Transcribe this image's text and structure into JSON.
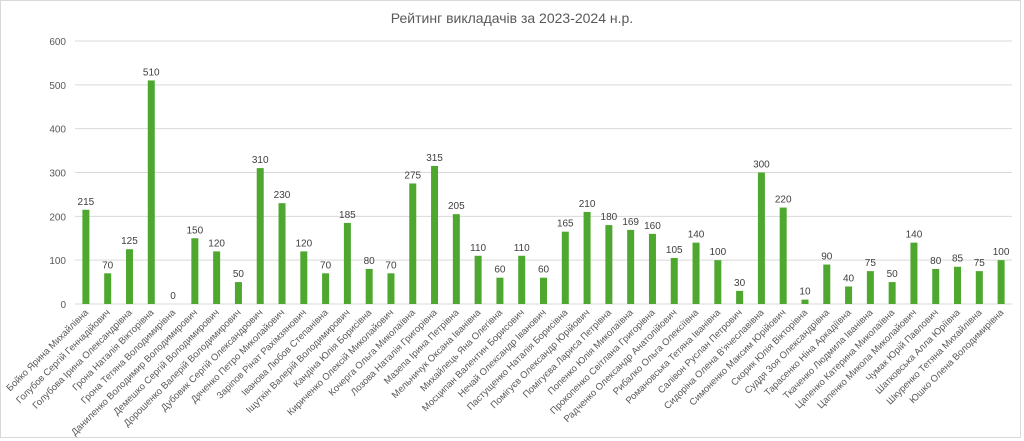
{
  "chart_data": {
    "type": "bar",
    "title": "Рейтинг викладачів за 2023-2024 н.р.",
    "xlabel": "",
    "ylabel": "",
    "ylim": [
      0,
      600
    ],
    "yticks": [
      0,
      100,
      200,
      300,
      400,
      500,
      600
    ],
    "grid": true,
    "legend": "none",
    "bar_color": "#4ea72e",
    "categories": [
      "Бойко Ярина Михайлівна",
      "Голубов Сергій Геннадійович",
      "Голубова Ірина Олександрівна",
      "Грона Наталія Вікторівна",
      "Грона Тетяна Володимирівна",
      "Даниленко Володимир Володимирович",
      "Демешко Сергій Володимирович",
      "Дорошенко Валерій Володимирович",
      "Дубовик Сергій Олександрович",
      "Дяченко Петро Миколайович",
      "Заріпов Рінат Рахімзянович",
      "Іванова Любов Степанівна",
      "Іщуткін Валерій Володимирович",
      "Кандіна Юлія Борисівна",
      "Кириченко Олексій Миколайович",
      "Кочерга Ольга Миколаївна",
      "Лозова Наталія Григорівна",
      "Мазепа Ірина Петрівна",
      "Мельничук Оксана Іванівна",
      "Михайлець Яна Олегівна",
      "Мосципан Валентин Борисович",
      "Нечай Олександр Іванович",
      "Пастущенко Наталія Борисівна",
      "Помігуєв Олександр Юрійович",
      "Помігуєва Лариса Петрівна",
      "Попенко Юлія Миколаївна",
      "Прокопенко Світлана Григорівна",
      "Радченко Олександр Анатолійович",
      "Рибалко Ольга Олексіївна",
      "Романовська Тетяна Іванівна",
      "Салівон Руслан Петрович",
      "Сидоріна Олена В'ячеславівна",
      "Симоненко Максим Юрійович",
      "Скорик Юлія Вікторівна",
      "Суддя Зоя Олександрівна",
      "Тарасенко Ніна Аркадіївна",
      "Ткаченко Людмила Іванівна",
      "Цапенко Катерина Миколаївна",
      "Цапенко Микола Миколайович",
      "Чумак Юрій Павлович",
      "Шатковська Алла Юріївна",
      "Шкуренко Тетяна Михайлівна",
      "Юшко Олена Володимирівна"
    ],
    "values": [
      215,
      70,
      125,
      510,
      0,
      150,
      120,
      50,
      310,
      230,
      120,
      70,
      185,
      80,
      70,
      275,
      315,
      205,
      110,
      60,
      110,
      60,
      165,
      210,
      180,
      169,
      160,
      105,
      140,
      100,
      30,
      300,
      220,
      10,
      90,
      40,
      75,
      50,
      140,
      80,
      85,
      75,
      100
    ]
  }
}
